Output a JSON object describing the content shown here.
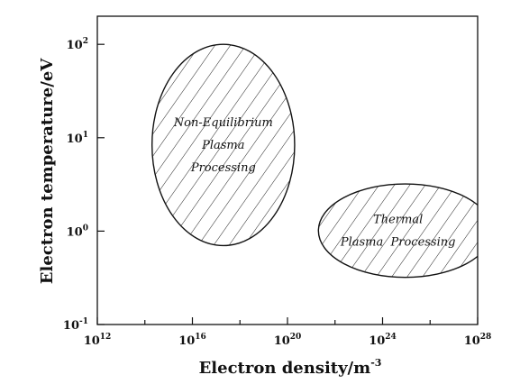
{
  "chart_data": {
    "type": "scatter",
    "xlabel": "Electron density/m",
    "xlabel_superscript": "-3",
    "ylabel": "Electron temperature/eV",
    "x_scale": "log",
    "y_scale": "log",
    "xlim": [
      1000000000000.0,
      1e+28
    ],
    "ylim": [
      0.1,
      200
    ],
    "x_ticks": [
      {
        "base": "10",
        "exp": "12",
        "value": 1000000000000.0
      },
      {
        "base": "10",
        "exp": "16",
        "value": 1e+16
      },
      {
        "base": "10",
        "exp": "20",
        "value": 1e+20
      },
      {
        "base": "10",
        "exp": "24",
        "value": 1e+24
      },
      {
        "base": "10",
        "exp": "28",
        "value": 1e+28
      }
    ],
    "y_ticks": [
      {
        "base": "10",
        "exp": "-1",
        "value": 0.1
      },
      {
        "base": "10",
        "exp": "0",
        "value": 1
      },
      {
        "base": "10",
        "exp": "1",
        "value": 10
      },
      {
        "base": "10",
        "exp": "2",
        "value": 100
      }
    ],
    "grid": false,
    "regions": [
      {
        "lines": [
          "Non-Equilibrium",
          "Plasma",
          "Processing"
        ],
        "shape": "ellipse",
        "fill": "hatched",
        "x_range": [
          200000000000000.0,
          2e+20
        ],
        "y_range": [
          0.7,
          100
        ]
      },
      {
        "lines": [
          "Thermal",
          "Plasma  Processing"
        ],
        "shape": "ellipse",
        "fill": "hatched",
        "x_range": [
          2e+21,
          4e+28
        ],
        "y_range": [
          0.32,
          3.2
        ]
      }
    ]
  }
}
